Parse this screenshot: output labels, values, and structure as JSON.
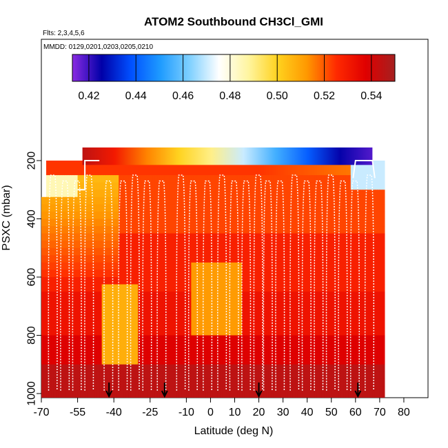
{
  "chart_data": {
    "type": "heatmap",
    "title": "ATOM2 Southbound CH3Cl_GMI",
    "flights_label": "Flts: 2,3,4,5,6",
    "mmdd_label": "MMDD: 0129,0201,0203,0205,0210",
    "xlabel": "Latitude (deg N)",
    "ylabel": "PSXC (mbar)",
    "xlim": [
      -70,
      90
    ],
    "ylim": [
      1000,
      50
    ],
    "x_ticks": [
      -70,
      -55,
      -40,
      -25,
      -10,
      0,
      10,
      20,
      30,
      40,
      50,
      60,
      70,
      80
    ],
    "x_tick_labels": [
      "-70",
      "-55",
      "-40",
      "-25",
      "-10",
      "0",
      "10",
      "20",
      "30",
      "40",
      "50",
      "60",
      "70",
      "80"
    ],
    "y_ticks": [
      200,
      400,
      600,
      800,
      1000
    ],
    "y_tick_labels": [
      "200",
      "400",
      "600",
      "800",
      "1000"
    ],
    "colorbar": {
      "min": 0.413,
      "max": 0.55,
      "ticks": [
        0.42,
        0.44,
        0.46,
        0.48,
        0.5,
        0.52,
        0.54
      ],
      "tick_labels": [
        "0.42",
        "0.44",
        "0.46",
        "0.48",
        "0.50",
        "0.52",
        "0.54"
      ],
      "colors": [
        "#8a2be2",
        "#0000a8",
        "#0050ff",
        "#1e9bff",
        "#7fd0ff",
        "#ffffff",
        "#fff5a0",
        "#ffd21e",
        "#ff9800",
        "#ff2a00",
        "#e00000",
        "#a52020"
      ]
    },
    "arrow_latitudes": [
      -42,
      -19,
      20,
      61
    ],
    "colors": {
      "flight_track": "#ffffff",
      "arrow": "#000000"
    }
  }
}
